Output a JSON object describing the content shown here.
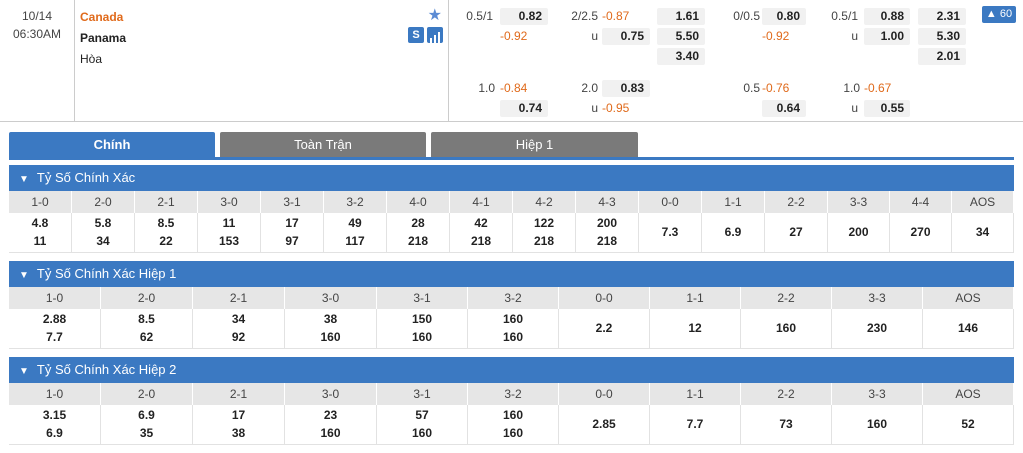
{
  "match": {
    "date": "10/14",
    "time": "06:30AM",
    "home": "Canada",
    "away": "Panama",
    "draw": "Hòa",
    "live_badge": "60",
    "icons": {
      "favorite": "star-icon",
      "stats_s": "S",
      "stats_chart": "bar-chart-icon"
    },
    "odds_main": [
      {
        "text": "0.5/1",
        "type": "lbl"
      },
      {
        "text": "0.82",
        "type": "box pos"
      },
      {
        "text": "-0.92",
        "type": "neg"
      },
      {
        "text": "2/2.5",
        "type": "lbl"
      },
      {
        "text": "-0.87",
        "type": "neg"
      },
      {
        "text": "u",
        "type": "lbl"
      },
      {
        "text": "0.75",
        "type": "box pos"
      },
      {
        "text": "1.61",
        "type": "box pos"
      },
      {
        "text": "5.50",
        "type": "box pos"
      },
      {
        "text": "3.40",
        "type": "box pos"
      },
      {
        "text": "0/0.5",
        "type": "lbl"
      },
      {
        "text": "0.80",
        "type": "box pos"
      },
      {
        "text": "-0.92",
        "type": "neg"
      },
      {
        "text": "0.5/1",
        "type": "lbl"
      },
      {
        "text": "0.88",
        "type": "box pos"
      },
      {
        "text": "u",
        "type": "lbl"
      },
      {
        "text": "1.00",
        "type": "box pos"
      },
      {
        "text": "2.31",
        "type": "box pos"
      },
      {
        "text": "5.30",
        "type": "box pos"
      },
      {
        "text": "2.01",
        "type": "box pos"
      }
    ],
    "odds_alt": [
      {
        "text": "1.0",
        "type": "lbl"
      },
      {
        "text": "-0.84",
        "type": "neg"
      },
      {
        "text": "0.74",
        "type": "box pos"
      },
      {
        "text": "2.0",
        "type": "lbl"
      },
      {
        "text": "0.83",
        "type": "box pos"
      },
      {
        "text": "u",
        "type": "lbl"
      },
      {
        "text": "-0.95",
        "type": "neg"
      },
      {
        "text": "0.5",
        "type": "lbl"
      },
      {
        "text": "-0.76",
        "type": "neg"
      },
      {
        "text": "0.64",
        "type": "box pos"
      },
      {
        "text": "1.0",
        "type": "lbl"
      },
      {
        "text": "-0.67",
        "type": "neg"
      },
      {
        "text": "u",
        "type": "lbl"
      },
      {
        "text": "0.55",
        "type": "box pos"
      }
    ]
  },
  "tabs": [
    "Chính",
    "Toàn Trận",
    "Hiệp 1"
  ],
  "sections": [
    {
      "title": "Tỷ Số Chính Xác",
      "cols": [
        {
          "score": "1-0",
          "v": [
            "4.8",
            "11"
          ]
        },
        {
          "score": "2-0",
          "v": [
            "5.8",
            "34"
          ]
        },
        {
          "score": "2-1",
          "v": [
            "8.5",
            "22"
          ]
        },
        {
          "score": "3-0",
          "v": [
            "11",
            "153"
          ]
        },
        {
          "score": "3-1",
          "v": [
            "17",
            "97"
          ]
        },
        {
          "score": "3-2",
          "v": [
            "49",
            "117"
          ]
        },
        {
          "score": "4-0",
          "v": [
            "28",
            "218"
          ]
        },
        {
          "score": "4-1",
          "v": [
            "42",
            "218"
          ]
        },
        {
          "score": "4-2",
          "v": [
            "122",
            "218"
          ]
        },
        {
          "score": "4-3",
          "v": [
            "200",
            "218"
          ]
        },
        {
          "score": "0-0",
          "v": [
            "7.3"
          ]
        },
        {
          "score": "1-1",
          "v": [
            "6.9"
          ]
        },
        {
          "score": "2-2",
          "v": [
            "27"
          ]
        },
        {
          "score": "3-3",
          "v": [
            "200"
          ]
        },
        {
          "score": "4-4",
          "v": [
            "270"
          ]
        },
        {
          "score": "AOS",
          "v": [
            "34"
          ]
        }
      ]
    },
    {
      "title": "Tỷ Số Chính Xác Hiệp 1",
      "cols": [
        {
          "score": "1-0",
          "v": [
            "2.88",
            "7.7"
          ]
        },
        {
          "score": "2-0",
          "v": [
            "8.5",
            "62"
          ]
        },
        {
          "score": "2-1",
          "v": [
            "34",
            "92"
          ]
        },
        {
          "score": "3-0",
          "v": [
            "38",
            "160"
          ]
        },
        {
          "score": "3-1",
          "v": [
            "150",
            "160"
          ]
        },
        {
          "score": "3-2",
          "v": [
            "160",
            "160"
          ]
        },
        {
          "score": "0-0",
          "v": [
            "2.2"
          ]
        },
        {
          "score": "1-1",
          "v": [
            "12"
          ]
        },
        {
          "score": "2-2",
          "v": [
            "160"
          ]
        },
        {
          "score": "3-3",
          "v": [
            "230"
          ]
        },
        {
          "score": "AOS",
          "v": [
            "146"
          ]
        }
      ]
    },
    {
      "title": "Tỷ Số Chính Xác Hiệp 2",
      "cols": [
        {
          "score": "1-0",
          "v": [
            "3.15",
            "6.9"
          ]
        },
        {
          "score": "2-0",
          "v": [
            "6.9",
            "35"
          ]
        },
        {
          "score": "2-1",
          "v": [
            "17",
            "38"
          ]
        },
        {
          "score": "3-0",
          "v": [
            "23",
            "160"
          ]
        },
        {
          "score": "3-1",
          "v": [
            "57",
            "160"
          ]
        },
        {
          "score": "3-2",
          "v": [
            "160",
            "160"
          ]
        },
        {
          "score": "0-0",
          "v": [
            "2.85"
          ]
        },
        {
          "score": "1-1",
          "v": [
            "7.7"
          ]
        },
        {
          "score": "2-2",
          "v": [
            "73"
          ]
        },
        {
          "score": "3-3",
          "v": [
            "160"
          ]
        },
        {
          "score": "AOS",
          "v": [
            "52"
          ]
        }
      ]
    }
  ]
}
